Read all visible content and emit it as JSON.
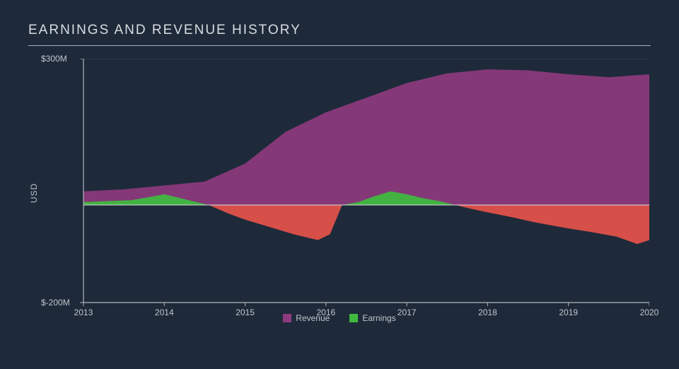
{
  "title": "EARNINGS AND REVENUE HISTORY",
  "ylabel": "USD",
  "chart": {
    "type": "area",
    "background_color": "#1e2a3a",
    "grid_color": "#3a4758",
    "axis_color": "#b0b6bc",
    "baseline_color": "#d8dcde",
    "text_color": "#c0c6cc",
    "title_fontsize": 19,
    "ytick_fontsize": 12,
    "xtick_fontsize": 12,
    "x_years": [
      2013,
      2014,
      2015,
      2016,
      2017,
      2018,
      2019,
      2020
    ],
    "y_ticks": [
      {
        "value": 300,
        "label": "$300M"
      },
      {
        "value": -200,
        "label": "$-200M"
      }
    ],
    "ylim": [
      -200,
      300
    ],
    "xlim": [
      2013,
      2020
    ],
    "revenue": {
      "color": "#8e3a7e",
      "label": "Revenue",
      "points": [
        [
          2013.0,
          28
        ],
        [
          2013.5,
          32
        ],
        [
          2014.0,
          40
        ],
        [
          2014.5,
          48
        ],
        [
          2015.0,
          85
        ],
        [
          2015.5,
          150
        ],
        [
          2016.0,
          190
        ],
        [
          2016.5,
          220
        ],
        [
          2017.0,
          250
        ],
        [
          2017.5,
          270
        ],
        [
          2018.0,
          278
        ],
        [
          2018.5,
          276
        ],
        [
          2019.0,
          268
        ],
        [
          2019.5,
          262
        ],
        [
          2020.0,
          268
        ]
      ]
    },
    "earnings_pos": {
      "color": "#3fb83f",
      "label": "Earnings",
      "points": [
        [
          2013.0,
          6
        ],
        [
          2013.3,
          8
        ],
        [
          2013.6,
          10
        ],
        [
          2014.0,
          22
        ],
        [
          2014.2,
          14
        ],
        [
          2014.4,
          6
        ],
        [
          2014.55,
          0
        ],
        [
          2016.2,
          0
        ],
        [
          2016.4,
          6
        ],
        [
          2016.6,
          18
        ],
        [
          2016.8,
          28
        ],
        [
          2017.0,
          22
        ],
        [
          2017.2,
          14
        ],
        [
          2017.4,
          8
        ],
        [
          2017.6,
          0
        ]
      ]
    },
    "earnings_neg": {
      "color": "#e6524a",
      "points": [
        [
          2014.55,
          0
        ],
        [
          2014.8,
          -18
        ],
        [
          2015.0,
          -30
        ],
        [
          2015.3,
          -45
        ],
        [
          2015.6,
          -60
        ],
        [
          2015.9,
          -72
        ],
        [
          2016.05,
          -60
        ],
        [
          2016.2,
          0
        ],
        [
          2017.6,
          0
        ],
        [
          2017.8,
          -8
        ],
        [
          2018.0,
          -15
        ],
        [
          2018.3,
          -25
        ],
        [
          2018.6,
          -36
        ],
        [
          2019.0,
          -48
        ],
        [
          2019.3,
          -56
        ],
        [
          2019.6,
          -65
        ],
        [
          2019.85,
          -80
        ],
        [
          2020.0,
          -72
        ]
      ]
    },
    "legend": [
      {
        "label": "Revenue",
        "color": "#8e3a7e"
      },
      {
        "label": "Earnings",
        "color": "#3fb83f"
      }
    ]
  }
}
